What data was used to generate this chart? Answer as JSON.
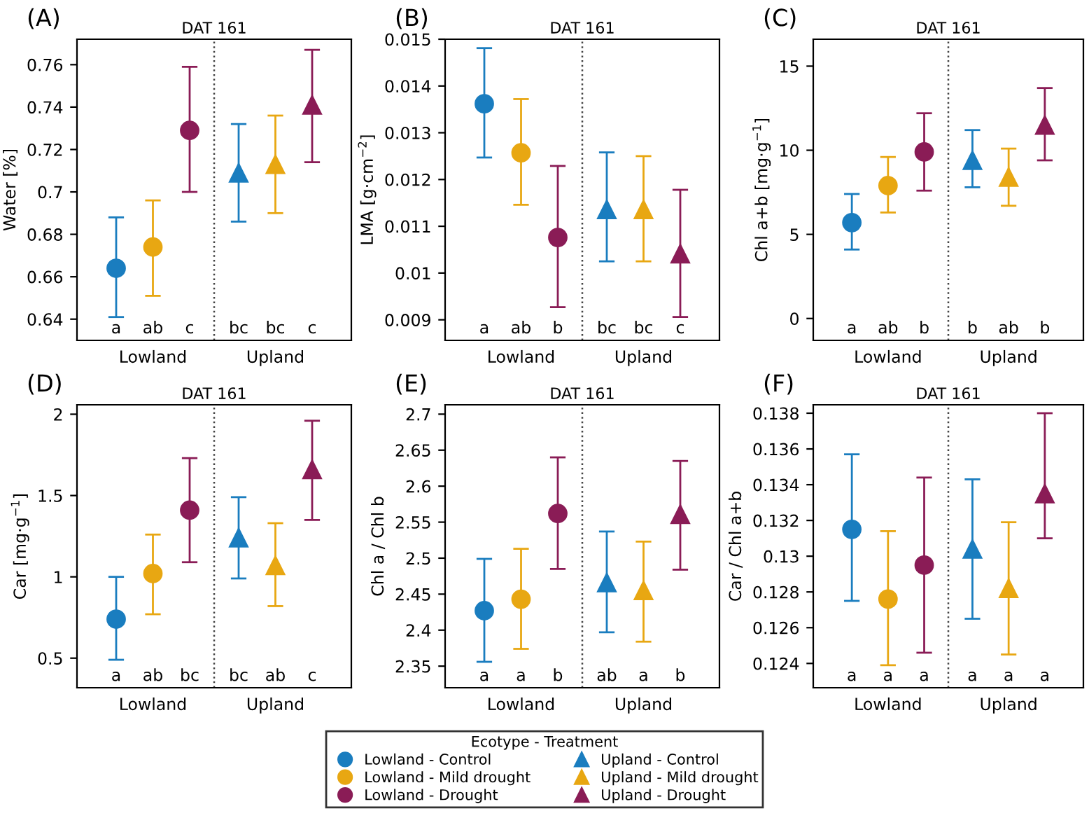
{
  "chart_data": [
    {
      "type": "scatter",
      "title": "(A)",
      "subtitle": "DAT 161",
      "ylabel": "Water [%]",
      "categories": [
        "Lowland",
        "Upland"
      ],
      "ylim": [
        0.63,
        0.772
      ],
      "yticks": [
        0.64,
        0.66,
        0.68,
        0.7,
        0.72,
        0.74,
        0.76
      ],
      "annotations": [
        "a",
        "ab",
        "c",
        "bc",
        "bc",
        "c"
      ],
      "legend": "bottom",
      "legend_title": "Ecotype - Treatment",
      "series": [
        {
          "name": "Lowland - Control",
          "color": "#1a7dbf",
          "marker": "circle",
          "values": [
            0.664,
            null
          ],
          "errors": [
            [
              0.641,
              0.688
            ],
            null
          ]
        },
        {
          "name": "Lowland - Mild drought",
          "color": "#e8a712",
          "marker": "circle",
          "values": [
            0.674,
            null
          ],
          "errors": [
            [
              0.651,
              0.696
            ],
            null
          ]
        },
        {
          "name": "Lowland - Drought",
          "color": "#8a1c56",
          "marker": "circle",
          "values": [
            0.729,
            null
          ],
          "errors": [
            [
              0.7,
              0.759
            ],
            null
          ]
        },
        {
          "name": "Upland - Control",
          "color": "#1a7dbf",
          "marker": "triangle",
          "values": [
            null,
            0.709
          ],
          "errors": [
            null,
            [
              0.686,
              0.732
            ]
          ]
        },
        {
          "name": "Upland - Mild drought",
          "color": "#e8a712",
          "marker": "triangle",
          "values": [
            null,
            0.713
          ],
          "errors": [
            null,
            [
              0.69,
              0.736
            ]
          ]
        },
        {
          "name": "Upland - Drought",
          "color": "#8a1c56",
          "marker": "triangle",
          "values": [
            null,
            0.741
          ],
          "errors": [
            null,
            [
              0.714,
              0.767
            ]
          ]
        }
      ]
    },
    {
      "type": "scatter",
      "title": "(B)",
      "subtitle": "DAT 161",
      "ylabel": "LMA [g·cm$^{−2}$]",
      "categories": [
        "Lowland",
        "Upland"
      ],
      "ylim": [
        0.00856,
        0.015
      ],
      "yticks": [
        0.009,
        0.01,
        0.011,
        0.012,
        0.013,
        0.014,
        0.015
      ],
      "annotations": [
        "a",
        "ab",
        "b",
        "bc",
        "bc",
        "c"
      ],
      "series": [
        {
          "color": "#1a7dbf",
          "marker": "circle",
          "values": [
            0.01362,
            null
          ],
          "errors": [
            [
              0.01247,
              0.01481
            ],
            null
          ]
        },
        {
          "color": "#e8a712",
          "marker": "circle",
          "values": [
            0.01257,
            null
          ],
          "errors": [
            [
              0.01146,
              0.01372
            ],
            null
          ]
        },
        {
          "color": "#8a1c56",
          "marker": "circle",
          "values": [
            0.01076,
            null
          ],
          "errors": [
            [
              0.00927,
              0.01229
            ],
            null
          ]
        },
        {
          "color": "#1a7dbf",
          "marker": "triangle",
          "values": [
            null,
            0.01136
          ],
          "errors": [
            null,
            [
              0.01025,
              0.01258
            ]
          ]
        },
        {
          "color": "#e8a712",
          "marker": "triangle",
          "values": [
            null,
            0.01136
          ],
          "errors": [
            null,
            [
              0.01025,
              0.0125
            ]
          ]
        },
        {
          "color": "#8a1c56",
          "marker": "triangle",
          "values": [
            null,
            0.01041
          ],
          "errors": [
            null,
            [
              0.00906,
              0.01178
            ]
          ]
        }
      ]
    },
    {
      "type": "scatter",
      "title": "(C)",
      "subtitle": "DAT 161",
      "ylabel": "Chl a+b [mg·g$^{−1}$]",
      "categories": [
        "Lowland",
        "Upland"
      ],
      "ylim": [
        -1.3,
        16.6
      ],
      "yticks": [
        0,
        5,
        10,
        15
      ],
      "annotations": [
        "a",
        "ab",
        "b",
        "b",
        "ab",
        "b"
      ],
      "series": [
        {
          "color": "#1a7dbf",
          "marker": "circle",
          "values": [
            5.7,
            null
          ],
          "errors": [
            [
              4.1,
              7.4
            ],
            null
          ]
        },
        {
          "color": "#e8a712",
          "marker": "circle",
          "values": [
            7.9,
            null
          ],
          "errors": [
            [
              6.3,
              9.6
            ],
            null
          ]
        },
        {
          "color": "#8a1c56",
          "marker": "circle",
          "values": [
            9.9,
            null
          ],
          "errors": [
            [
              7.6,
              12.2
            ],
            null
          ]
        },
        {
          "color": "#1a7dbf",
          "marker": "triangle",
          "values": [
            null,
            9.4
          ],
          "errors": [
            null,
            [
              7.8,
              11.2
            ]
          ]
        },
        {
          "color": "#e8a712",
          "marker": "triangle",
          "values": [
            null,
            8.4
          ],
          "errors": [
            null,
            [
              6.7,
              10.1
            ]
          ]
        },
        {
          "color": "#8a1c56",
          "marker": "triangle",
          "values": [
            null,
            11.5
          ],
          "errors": [
            null,
            [
              9.4,
              13.7
            ]
          ]
        }
      ]
    },
    {
      "type": "scatter",
      "title": "(D)",
      "subtitle": "DAT 161",
      "ylabel": "Car [mg·g$^{−1}$]",
      "categories": [
        "Lowland",
        "Upland"
      ],
      "ylim": [
        0.318,
        2.058
      ],
      "yticks": [
        0.5,
        1,
        1.5,
        2
      ],
      "annotations": [
        "a",
        "ab",
        "bc",
        "bc",
        "ab",
        "c"
      ],
      "series": [
        {
          "color": "#1a7dbf",
          "marker": "circle",
          "values": [
            0.74,
            null
          ],
          "errors": [
            [
              0.49,
              1.0
            ],
            null
          ]
        },
        {
          "color": "#e8a712",
          "marker": "circle",
          "values": [
            1.02,
            null
          ],
          "errors": [
            [
              0.77,
              1.26
            ],
            null
          ]
        },
        {
          "color": "#8a1c56",
          "marker": "circle",
          "values": [
            1.41,
            null
          ],
          "errors": [
            [
              1.09,
              1.73
            ],
            null
          ]
        },
        {
          "color": "#1a7dbf",
          "marker": "triangle",
          "values": [
            null,
            1.24
          ],
          "errors": [
            null,
            [
              0.99,
              1.49
            ]
          ]
        },
        {
          "color": "#e8a712",
          "marker": "triangle",
          "values": [
            null,
            1.07
          ],
          "errors": [
            null,
            [
              0.82,
              1.33
            ]
          ]
        },
        {
          "color": "#8a1c56",
          "marker": "triangle",
          "values": [
            null,
            1.66
          ],
          "errors": [
            null,
            [
              1.35,
              1.96
            ]
          ]
        }
      ]
    },
    {
      "type": "scatter",
      "title": "(E)",
      "subtitle": "DAT 161",
      "ylabel": "Chl a / Chl b",
      "categories": [
        "Lowland",
        "Upland"
      ],
      "ylim": [
        2.32,
        2.713
      ],
      "yticks": [
        2.35,
        2.4,
        2.45,
        2.5,
        2.55,
        2.6,
        2.65,
        2.7
      ],
      "annotations": [
        "a",
        "a",
        "b",
        "ab",
        "a",
        "b"
      ],
      "series": [
        {
          "color": "#1a7dbf",
          "marker": "circle",
          "values": [
            2.427,
            null
          ],
          "errors": [
            [
              2.356,
              2.499
            ],
            null
          ]
        },
        {
          "color": "#e8a712",
          "marker": "circle",
          "values": [
            2.443,
            null
          ],
          "errors": [
            [
              2.374,
              2.513
            ],
            null
          ]
        },
        {
          "color": "#8a1c56",
          "marker": "circle",
          "values": [
            2.562,
            null
          ],
          "errors": [
            [
              2.485,
              2.64
            ],
            null
          ]
        },
        {
          "color": "#1a7dbf",
          "marker": "triangle",
          "values": [
            null,
            2.466
          ],
          "errors": [
            null,
            [
              2.397,
              2.537
            ]
          ]
        },
        {
          "color": "#e8a712",
          "marker": "triangle",
          "values": [
            null,
            2.455
          ],
          "errors": [
            null,
            [
              2.384,
              2.523
            ]
          ]
        },
        {
          "color": "#8a1c56",
          "marker": "triangle",
          "values": [
            null,
            2.561
          ],
          "errors": [
            null,
            [
              2.484,
              2.635
            ]
          ]
        }
      ]
    },
    {
      "type": "scatter",
      "title": "(F)",
      "subtitle": "DAT 161",
      "ylabel": "Car / Chl a+b",
      "categories": [
        "Lowland",
        "Upland"
      ],
      "ylim": [
        0.12264,
        0.13847
      ],
      "yticks": [
        0.124,
        0.126,
        0.128,
        0.13,
        0.132,
        0.134,
        0.136,
        0.138
      ],
      "annotations": [
        "a",
        "a",
        "a",
        "a",
        "a",
        "a"
      ],
      "series": [
        {
          "color": "#1a7dbf",
          "marker": "circle",
          "values": [
            0.1315,
            null
          ],
          "errors": [
            [
              0.1275,
              0.1357
            ],
            null
          ]
        },
        {
          "color": "#e8a712",
          "marker": "circle",
          "values": [
            0.1276,
            null
          ],
          "errors": [
            [
              0.1239,
              0.1314
            ],
            null
          ]
        },
        {
          "color": "#8a1c56",
          "marker": "circle",
          "values": [
            0.1295,
            null
          ],
          "errors": [
            [
              0.1246,
              0.1344
            ],
            null
          ]
        },
        {
          "color": "#1a7dbf",
          "marker": "triangle",
          "values": [
            null,
            0.1304
          ],
          "errors": [
            null,
            [
              0.1265,
              0.1343
            ]
          ]
        },
        {
          "color": "#e8a712",
          "marker": "triangle",
          "values": [
            null,
            0.1282
          ],
          "errors": [
            null,
            [
              0.1245,
              0.1319
            ]
          ]
        },
        {
          "color": "#8a1c56",
          "marker": "triangle",
          "values": [
            null,
            0.1335
          ],
          "errors": [
            null,
            [
              0.131,
              0.138
            ]
          ]
        }
      ]
    }
  ]
}
